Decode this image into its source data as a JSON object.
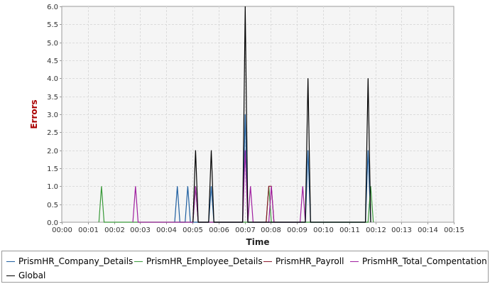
{
  "chart_data": {
    "type": "line",
    "title": "",
    "xlabel": "Time",
    "ylabel": "Errors",
    "xlim": [
      0,
      15
    ],
    "ylim": [
      0,
      6.0
    ],
    "x_unit": "minutes",
    "x_tick_labels": [
      "00:00",
      "00:01",
      "00:02",
      "00:03",
      "00:04",
      "00:05",
      "00:06",
      "00:07",
      "00:08",
      "00:09",
      "00:10",
      "00:11",
      "00:12",
      "00:13",
      "00:14",
      "00:15"
    ],
    "y_tick_labels": [
      "0.0",
      "0.5",
      "1.0",
      "1.5",
      "2.0",
      "2.5",
      "3.0",
      "3.5",
      "4.0",
      "4.5",
      "5.0",
      "5.5",
      "6.0"
    ],
    "grid": true,
    "legend_position": "bottom",
    "series": [
      {
        "name": "PrismHR_Company_Details",
        "color": "#1f5fa0",
        "points": [
          [
            4.32,
            0
          ],
          [
            4.42,
            1
          ],
          [
            4.52,
            0
          ],
          [
            4.72,
            0
          ],
          [
            4.82,
            1
          ],
          [
            4.92,
            0
          ],
          [
            5.62,
            0
          ],
          [
            5.72,
            1
          ],
          [
            5.82,
            0
          ],
          [
            6.92,
            0
          ],
          [
            7.02,
            3
          ],
          [
            7.12,
            0
          ],
          [
            9.32,
            0
          ],
          [
            9.42,
            2
          ],
          [
            9.52,
            0
          ],
          [
            11.62,
            0
          ],
          [
            11.72,
            2
          ],
          [
            11.82,
            0
          ]
        ]
      },
      {
        "name": "PrismHR_Employee_Details",
        "color": "#3a9a3a",
        "points": [
          [
            1.42,
            0
          ],
          [
            1.52,
            1
          ],
          [
            1.62,
            0
          ],
          [
            5.02,
            0
          ],
          [
            5.12,
            1
          ],
          [
            5.22,
            0
          ],
          [
            7.82,
            0
          ],
          [
            7.92,
            1
          ],
          [
            8.02,
            0
          ],
          [
            11.72,
            0
          ],
          [
            11.82,
            1
          ],
          [
            11.92,
            0
          ]
        ]
      },
      {
        "name": "PrismHR_Payroll",
        "color": "#8b1a2b",
        "points": [
          [
            7.82,
            0
          ],
          [
            7.92,
            1
          ],
          [
            8.02,
            1
          ],
          [
            8.12,
            0
          ]
        ]
      },
      {
        "name": "PrismHR_Total_Compentation",
        "color": "#a020a0",
        "points": [
          [
            2.72,
            0
          ],
          [
            2.82,
            1
          ],
          [
            2.92,
            0
          ],
          [
            5.02,
            0
          ],
          [
            5.12,
            1
          ],
          [
            5.22,
            0
          ],
          [
            6.92,
            0
          ],
          [
            7.02,
            2
          ],
          [
            7.12,
            0
          ],
          [
            7.22,
            1
          ],
          [
            7.32,
            0
          ],
          [
            7.92,
            0
          ],
          [
            8.02,
            1
          ],
          [
            8.12,
            0
          ],
          [
            9.12,
            0
          ],
          [
            9.22,
            1
          ],
          [
            9.32,
            0
          ]
        ]
      },
      {
        "name": "Global",
        "color": "#000000",
        "points": [
          [
            5.02,
            0
          ],
          [
            5.12,
            2
          ],
          [
            5.22,
            0
          ],
          [
            5.62,
            0
          ],
          [
            5.72,
            2
          ],
          [
            5.82,
            0
          ],
          [
            6.92,
            0
          ],
          [
            7.02,
            6
          ],
          [
            7.12,
            0
          ],
          [
            9.32,
            0
          ],
          [
            9.42,
            4
          ],
          [
            9.52,
            0
          ],
          [
            11.62,
            0
          ],
          [
            11.72,
            4
          ],
          [
            11.82,
            0
          ]
        ]
      }
    ]
  },
  "legend": {
    "items": [
      {
        "label": "PrismHR_Company_Details",
        "color": "#1f5fa0"
      },
      {
        "label": "PrismHR_Employee_Details",
        "color": "#3a9a3a"
      },
      {
        "label": "PrismHR_Payroll",
        "color": "#8b1a2b"
      },
      {
        "label": "PrismHR_Total_Compentation",
        "color": "#a020a0"
      },
      {
        "label": "Global",
        "color": "#000000"
      }
    ]
  },
  "colors": {
    "plot_background": "#f5f5f5",
    "gridline": "#dcdcdc",
    "axis_line": "#9a9a9a",
    "ylabel_color": "#aa0000",
    "tick_text": "#333333"
  }
}
